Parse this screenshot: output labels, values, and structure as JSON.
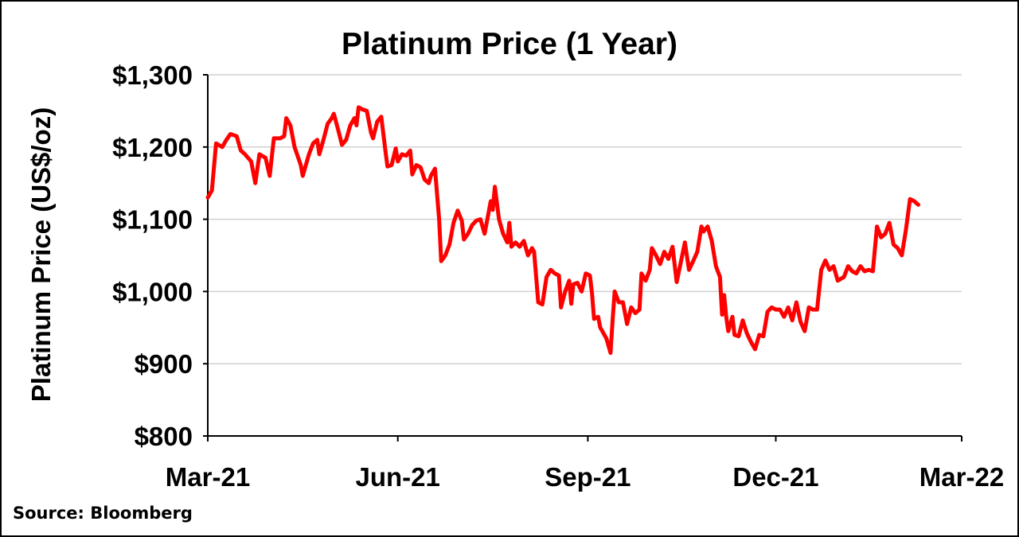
{
  "chart_data": {
    "type": "line",
    "title": "Platinum Price (1 Year)",
    "ylabel": "Platinum Price (US$/oz)",
    "xlabel": "",
    "source": "Source: Bloomberg",
    "line_color": "#ff0000",
    "grid": true,
    "legend": "none",
    "ylim": [
      800,
      1300
    ],
    "yticks": [
      {
        "value": 800,
        "label": "$800"
      },
      {
        "value": 900,
        "label": "$900"
      },
      {
        "value": 1000,
        "label": "$1,000"
      },
      {
        "value": 1100,
        "label": "$1,100"
      },
      {
        "value": 1200,
        "label": "$1,200"
      },
      {
        "value": 1300,
        "label": "$1,300"
      }
    ],
    "xlim": [
      "2021-03-01",
      "2022-03-01"
    ],
    "xticks": [
      {
        "date": "2021-03-01",
        "label": "Mar-21"
      },
      {
        "date": "2021-06-01",
        "label": "Jun-21"
      },
      {
        "date": "2021-09-01",
        "label": "Sep-21"
      },
      {
        "date": "2021-12-01",
        "label": "Dec-21"
      },
      {
        "date": "2022-03-01",
        "label": "Mar-22"
      }
    ],
    "series": [
      {
        "values": [
          [
            "2021-03-01",
            1130
          ],
          [
            "2021-03-03",
            1140
          ],
          [
            "2021-03-05",
            1205
          ],
          [
            "2021-03-08",
            1200
          ],
          [
            "2021-03-10",
            1210
          ],
          [
            "2021-03-12",
            1218
          ],
          [
            "2021-03-15",
            1215
          ],
          [
            "2021-03-17",
            1195
          ],
          [
            "2021-03-19",
            1190
          ],
          [
            "2021-03-22",
            1180
          ],
          [
            "2021-03-23",
            1165
          ],
          [
            "2021-03-24",
            1150
          ],
          [
            "2021-03-26",
            1190
          ],
          [
            "2021-03-29",
            1185
          ],
          [
            "2021-03-31",
            1160
          ],
          [
            "2021-04-02",
            1212
          ],
          [
            "2021-04-05",
            1212
          ],
          [
            "2021-04-07",
            1215
          ],
          [
            "2021-04-08",
            1240
          ],
          [
            "2021-04-10",
            1230
          ],
          [
            "2021-04-12",
            1200
          ],
          [
            "2021-04-15",
            1175
          ],
          [
            "2021-04-16",
            1160
          ],
          [
            "2021-04-19",
            1190
          ],
          [
            "2021-04-21",
            1205
          ],
          [
            "2021-04-23",
            1210
          ],
          [
            "2021-04-24",
            1190
          ],
          [
            "2021-04-26",
            1210
          ],
          [
            "2021-04-28",
            1232
          ],
          [
            "2021-04-30",
            1240
          ],
          [
            "2021-05-01",
            1246
          ],
          [
            "2021-05-03",
            1225
          ],
          [
            "2021-05-05",
            1203
          ],
          [
            "2021-05-07",
            1210
          ],
          [
            "2021-05-09",
            1230
          ],
          [
            "2021-05-11",
            1240
          ],
          [
            "2021-05-12",
            1230
          ],
          [
            "2021-05-13",
            1255
          ],
          [
            "2021-05-15",
            1252
          ],
          [
            "2021-05-17",
            1250
          ],
          [
            "2021-05-19",
            1220
          ],
          [
            "2021-05-20",
            1212
          ],
          [
            "2021-05-22",
            1235
          ],
          [
            "2021-05-24",
            1242
          ],
          [
            "2021-05-26",
            1195
          ],
          [
            "2021-05-27",
            1173
          ],
          [
            "2021-05-29",
            1175
          ],
          [
            "2021-05-31",
            1198
          ],
          [
            "2021-06-01",
            1180
          ],
          [
            "2021-06-03",
            1190
          ],
          [
            "2021-06-05",
            1188
          ],
          [
            "2021-06-07",
            1195
          ],
          [
            "2021-06-08",
            1162
          ],
          [
            "2021-06-10",
            1175
          ],
          [
            "2021-06-12",
            1172
          ],
          [
            "2021-06-14",
            1155
          ],
          [
            "2021-06-16",
            1150
          ],
          [
            "2021-06-17",
            1160
          ],
          [
            "2021-06-19",
            1170
          ],
          [
            "2021-06-21",
            1100
          ],
          [
            "2021-06-22",
            1042
          ],
          [
            "2021-06-24",
            1050
          ],
          [
            "2021-06-26",
            1065
          ],
          [
            "2021-06-28",
            1095
          ],
          [
            "2021-06-30",
            1112
          ],
          [
            "2021-07-02",
            1098
          ],
          [
            "2021-07-03",
            1072
          ],
          [
            "2021-07-05",
            1080
          ],
          [
            "2021-07-07",
            1092
          ],
          [
            "2021-07-09",
            1098
          ],
          [
            "2021-07-11",
            1100
          ],
          [
            "2021-07-13",
            1080
          ],
          [
            "2021-07-15",
            1110
          ],
          [
            "2021-07-16",
            1125
          ],
          [
            "2021-07-17",
            1113
          ],
          [
            "2021-07-18",
            1145
          ],
          [
            "2021-07-20",
            1100
          ],
          [
            "2021-07-22",
            1080
          ],
          [
            "2021-07-24",
            1068
          ],
          [
            "2021-07-25",
            1095
          ],
          [
            "2021-07-26",
            1062
          ],
          [
            "2021-07-28",
            1068
          ],
          [
            "2021-07-30",
            1062
          ],
          [
            "2021-08-01",
            1070
          ],
          [
            "2021-08-03",
            1050
          ],
          [
            "2021-08-05",
            1060
          ],
          [
            "2021-08-06",
            1055
          ],
          [
            "2021-08-08",
            985
          ],
          [
            "2021-08-10",
            982
          ],
          [
            "2021-08-12",
            1020
          ],
          [
            "2021-08-14",
            1030
          ],
          [
            "2021-08-16",
            1025
          ],
          [
            "2021-08-18",
            1022
          ],
          [
            "2021-08-19",
            978
          ],
          [
            "2021-08-21",
            1000
          ],
          [
            "2021-08-23",
            1015
          ],
          [
            "2021-08-24",
            983
          ],
          [
            "2021-08-25",
            1010
          ],
          [
            "2021-08-27",
            1012
          ],
          [
            "2021-08-29",
            1000
          ],
          [
            "2021-08-31",
            1025
          ],
          [
            "2021-09-02",
            1022
          ],
          [
            "2021-09-03",
            998
          ],
          [
            "2021-09-04",
            962
          ],
          [
            "2021-09-06",
            965
          ],
          [
            "2021-09-07",
            950
          ],
          [
            "2021-09-08",
            945
          ],
          [
            "2021-09-10",
            935
          ],
          [
            "2021-09-12",
            915
          ],
          [
            "2021-09-13",
            960
          ],
          [
            "2021-09-14",
            1000
          ],
          [
            "2021-09-16",
            985
          ],
          [
            "2021-09-18",
            985
          ],
          [
            "2021-09-20",
            955
          ],
          [
            "2021-09-22",
            978
          ],
          [
            "2021-09-24",
            970
          ],
          [
            "2021-09-26",
            975
          ],
          [
            "2021-09-27",
            1025
          ],
          [
            "2021-09-29",
            1015
          ],
          [
            "2021-10-01",
            1030
          ],
          [
            "2021-10-02",
            1060
          ],
          [
            "2021-10-04",
            1050
          ],
          [
            "2021-10-06",
            1038
          ],
          [
            "2021-10-08",
            1055
          ],
          [
            "2021-10-10",
            1045
          ],
          [
            "2021-10-12",
            1062
          ],
          [
            "2021-10-14",
            1013
          ],
          [
            "2021-10-16",
            1040
          ],
          [
            "2021-10-18",
            1068
          ],
          [
            "2021-10-20",
            1030
          ],
          [
            "2021-10-22",
            1042
          ],
          [
            "2021-10-24",
            1055
          ],
          [
            "2021-10-26",
            1090
          ],
          [
            "2021-10-27",
            1083
          ],
          [
            "2021-10-29",
            1090
          ],
          [
            "2021-10-31",
            1070
          ],
          [
            "2021-11-02",
            1035
          ],
          [
            "2021-11-04",
            1020
          ],
          [
            "2021-11-05",
            968
          ],
          [
            "2021-11-06",
            995
          ],
          [
            "2021-11-07",
            965
          ],
          [
            "2021-11-08",
            945
          ],
          [
            "2021-11-10",
            965
          ],
          [
            "2021-11-11",
            940
          ],
          [
            "2021-11-13",
            938
          ],
          [
            "2021-11-15",
            960
          ],
          [
            "2021-11-17",
            942
          ],
          [
            "2021-11-19",
            930
          ],
          [
            "2021-11-21",
            920
          ],
          [
            "2021-11-23",
            940
          ],
          [
            "2021-11-25",
            938
          ],
          [
            "2021-11-27",
            972
          ],
          [
            "2021-11-29",
            978
          ],
          [
            "2021-12-01",
            975
          ],
          [
            "2021-12-03",
            975
          ],
          [
            "2021-12-05",
            965
          ],
          [
            "2021-12-07",
            978
          ],
          [
            "2021-12-09",
            960
          ],
          [
            "2021-12-11",
            985
          ],
          [
            "2021-12-13",
            958
          ],
          [
            "2021-12-15",
            945
          ],
          [
            "2021-12-17",
            978
          ],
          [
            "2021-12-19",
            975
          ],
          [
            "2021-12-21",
            975
          ],
          [
            "2021-12-23",
            1030
          ],
          [
            "2021-12-25",
            1043
          ],
          [
            "2021-12-27",
            1030
          ],
          [
            "2021-12-29",
            1035
          ],
          [
            "2021-12-31",
            1015
          ],
          [
            "2022-01-03",
            1020
          ],
          [
            "2022-01-05",
            1035
          ],
          [
            "2022-01-07",
            1028
          ],
          [
            "2022-01-09",
            1025
          ],
          [
            "2022-01-11",
            1035
          ],
          [
            "2022-01-13",
            1028
          ],
          [
            "2022-01-15",
            1030
          ],
          [
            "2022-01-17",
            1028
          ],
          [
            "2022-01-19",
            1090
          ],
          [
            "2022-01-21",
            1075
          ],
          [
            "2022-01-23",
            1080
          ],
          [
            "2022-01-25",
            1095
          ],
          [
            "2022-01-27",
            1065
          ],
          [
            "2022-01-29",
            1060
          ],
          [
            "2022-01-31",
            1050
          ],
          [
            "2022-02-02",
            1085
          ],
          [
            "2022-02-04",
            1128
          ],
          [
            "2022-02-06",
            1125
          ],
          [
            "2022-02-08",
            1120
          ]
        ]
      }
    ]
  }
}
